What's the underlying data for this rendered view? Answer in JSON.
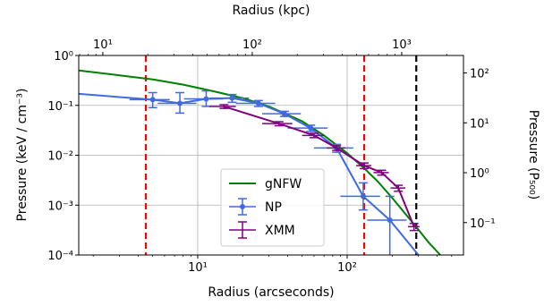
{
  "chart_data": {
    "type": "line",
    "x_scale": "log",
    "y_scale": "log",
    "xlabel": "Radius (arcseconds)",
    "ylabel": "Pressure (keV / cm⁻³)",
    "xlabel_top": "Radius (kpc)",
    "ylabel_right": "Pressure (P₅₀₀)",
    "xlim": [
      1.6,
      600
    ],
    "ylim": [
      0.0001,
      1.0
    ],
    "top_xlim_kpc": [
      6.9,
      2590
    ],
    "right_ylim_p500": [
      0.0224,
      224
    ],
    "x_ticks": [
      {
        "value": 10,
        "label": "10¹"
      },
      {
        "value": 100,
        "label": "10²"
      }
    ],
    "y_ticks": [
      {
        "value": 0.0001,
        "label": "10⁻⁴"
      },
      {
        "value": 0.001,
        "label": "10⁻³"
      },
      {
        "value": 0.01,
        "label": "10⁻²"
      },
      {
        "value": 0.1,
        "label": "10⁻¹"
      },
      {
        "value": 1,
        "label": "10⁰"
      }
    ],
    "top_ticks": [
      {
        "value": 10,
        "label": "10¹"
      },
      {
        "value": 100,
        "label": "10²"
      },
      {
        "value": 1000,
        "label": "10³"
      }
    ],
    "right_ticks": [
      {
        "value": 0.1,
        "label": "10⁻¹"
      },
      {
        "value": 1,
        "label": "10⁰"
      },
      {
        "value": 10,
        "label": "10¹"
      },
      {
        "value": 100,
        "label": "10²"
      }
    ],
    "grid": true,
    "legend_position": "lower-center",
    "series": [
      {
        "name": "gNFW",
        "kind": "line",
        "color": "#008000",
        "x": [
          1.6,
          3,
          5,
          8,
          12,
          20,
          30,
          50,
          70,
          100,
          130,
          160,
          200,
          250,
          300,
          350,
          420
        ],
        "y": [
          0.5,
          0.4,
          0.33,
          0.26,
          0.2,
          0.14,
          0.095,
          0.048,
          0.025,
          0.011,
          0.0055,
          0.003,
          0.0014,
          0.00062,
          0.00032,
          0.00018,
          0.0001
        ]
      },
      {
        "name": "NP",
        "kind": "errorbar",
        "color": "#4169E1",
        "x": [
          5,
          7.6,
          11.4,
          17,
          25.5,
          38,
          57,
          85,
          128,
          193
        ],
        "y": [
          0.13,
          0.11,
          0.135,
          0.14,
          0.11,
          0.068,
          0.035,
          0.014,
          0.0015,
          0.0005
        ],
        "yerr_low": [
          0.04,
          0.04,
          0.04,
          0.025,
          0.015,
          0.008,
          0.005,
          0.0025,
          0.0007,
          0.0004
        ],
        "yerr_high": [
          0.05,
          0.07,
          0.06,
          0.025,
          0.015,
          0.008,
          0.005,
          0.0025,
          0.0013,
          0.001
        ],
        "xerr": [
          1.5,
          2.2,
          3.3,
          5,
          7.5,
          11,
          17,
          25,
          38,
          57
        ],
        "start_x": 1.6,
        "start_y": 0.17,
        "end_x": 300,
        "end_y": 0.0001
      },
      {
        "name": "XMM",
        "kind": "errorbar",
        "color": "#800080",
        "x": [
          15,
          35,
          60,
          85,
          130,
          170,
          220,
          280
        ],
        "y": [
          0.095,
          0.043,
          0.025,
          0.014,
          0.0062,
          0.0045,
          0.0022,
          0.00037
        ],
        "yerr_low": [
          0.008,
          0.004,
          0.0025,
          0.0015,
          0.0008,
          0.0005,
          0.0003,
          6e-05
        ],
        "yerr_high": [
          0.008,
          0.004,
          0.0025,
          0.0015,
          0.0008,
          0.0005,
          0.0003,
          6e-05
        ],
        "xerr": [
          3,
          8,
          10,
          12,
          15,
          20,
          25,
          25
        ]
      }
    ],
    "vlines": [
      {
        "x": 4.5,
        "color": "#ff0000",
        "style": "dashed"
      },
      {
        "x": 130,
        "color": "#ff0000",
        "style": "dashed"
      },
      {
        "x": 290,
        "color": "#000000",
        "style": "dashed"
      }
    ]
  }
}
